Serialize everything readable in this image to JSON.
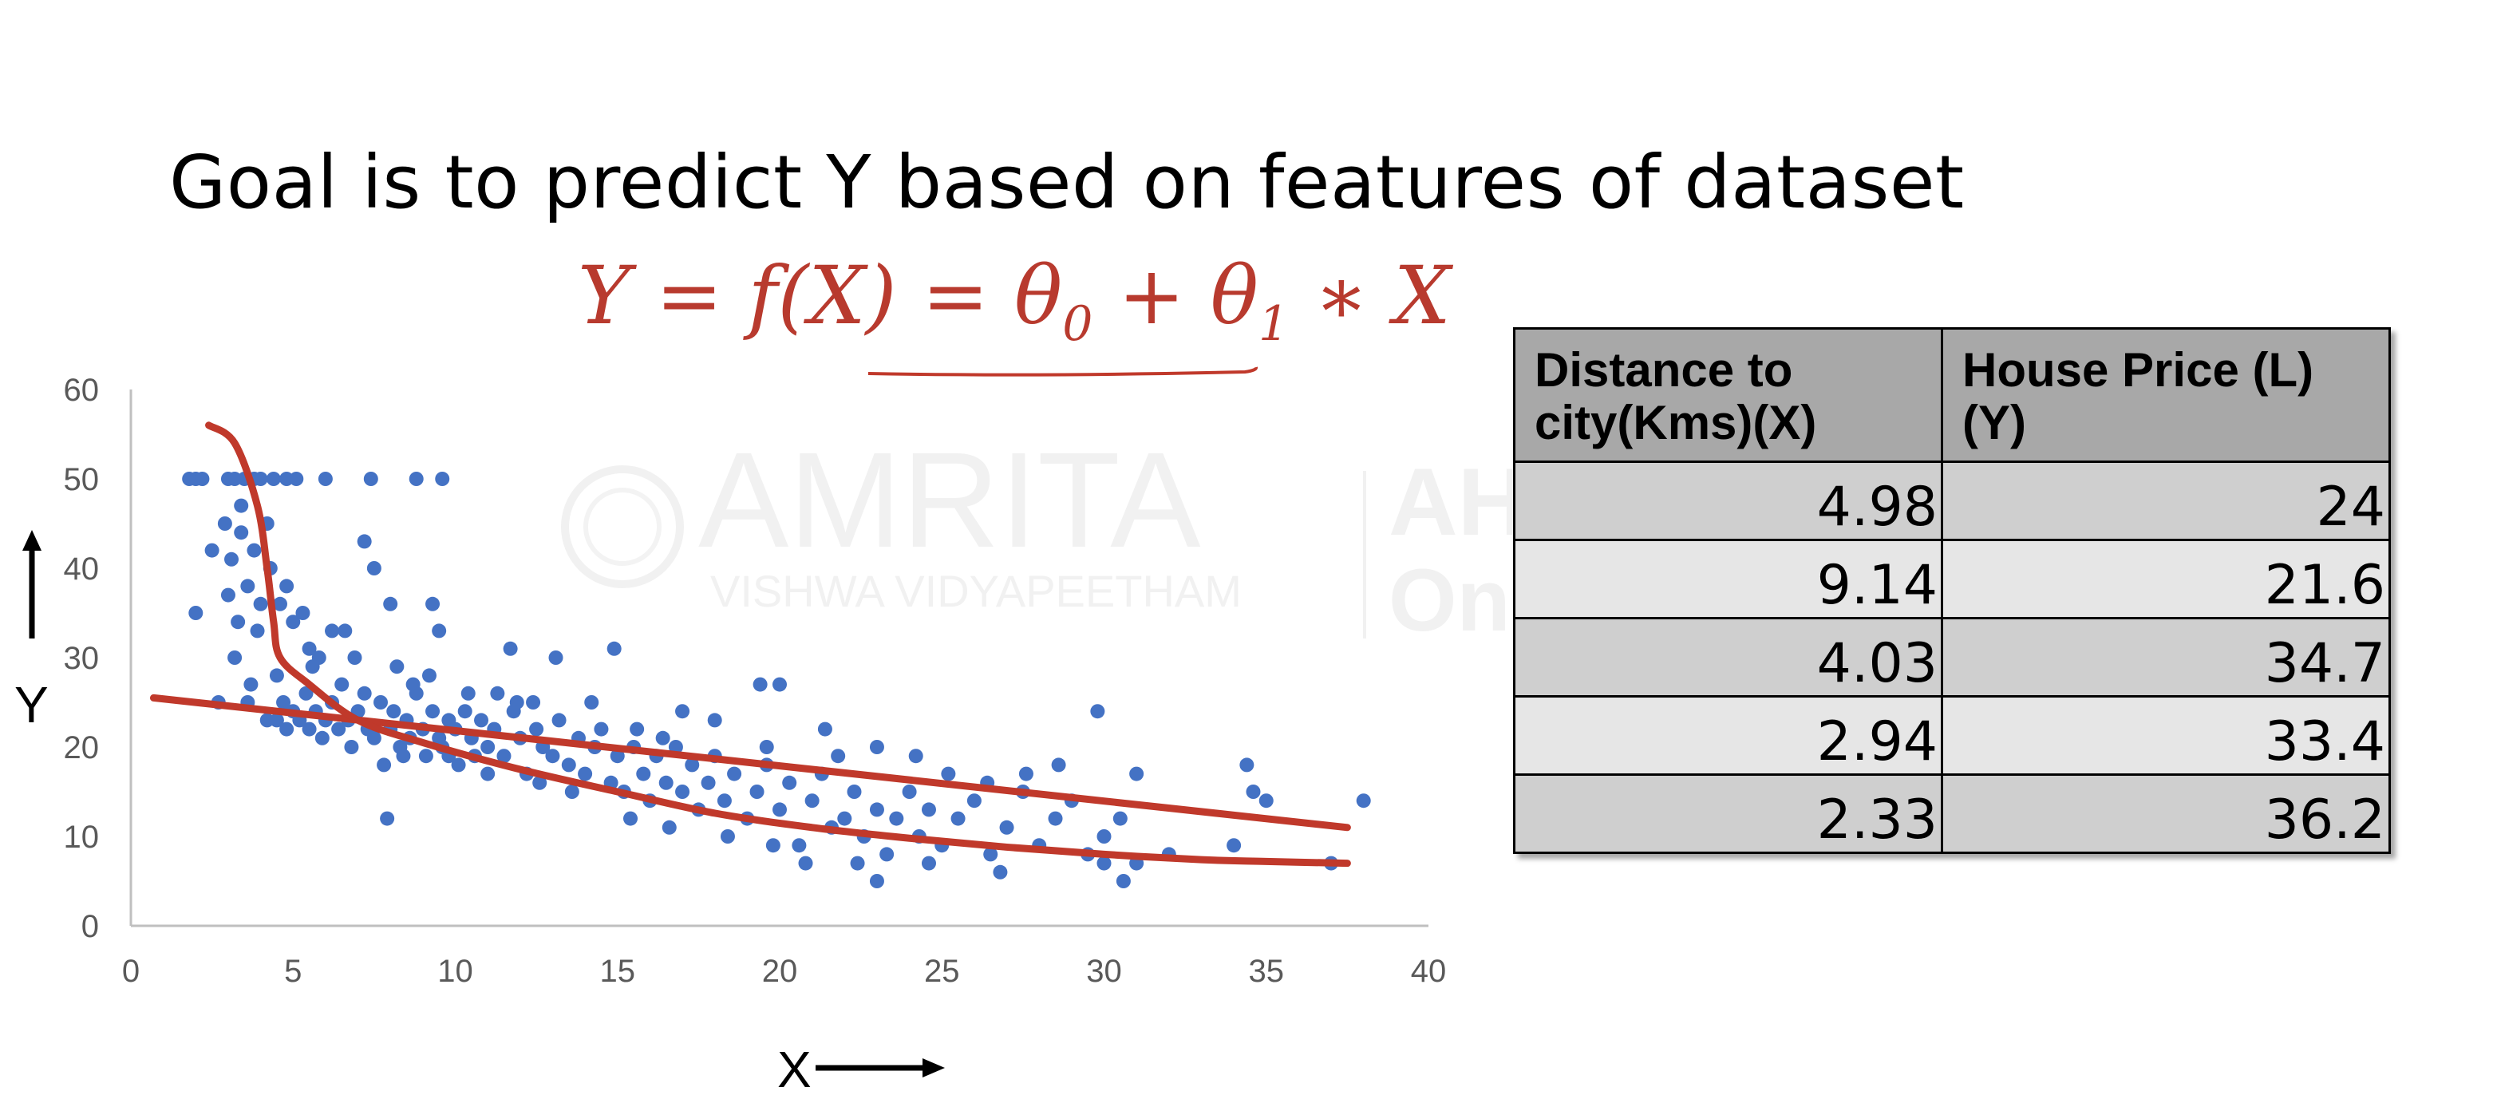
{
  "slide": {
    "title": "Goal is to predict Y based on features of dataset",
    "formula": {
      "lhs": "Y = f(X) = θ",
      "sub0": "0",
      "mid": " + θ",
      "sub1": "1",
      "rhs": " ∗ X"
    },
    "watermark": {
      "brand": "AMRITA",
      "tagline": "VISHWA VIDYAPEETHAM",
      "ahead": "AHEAD",
      "online": "Online"
    },
    "accent_color": "#c0392b"
  },
  "chart_data": {
    "type": "scatter",
    "title": "",
    "xlabel": "X",
    "ylabel": "Y",
    "xlim": [
      0,
      40
    ],
    "ylim": [
      0,
      60
    ],
    "xticks": [
      "0",
      "5",
      "10",
      "15",
      "20",
      "25",
      "30",
      "35",
      "40"
    ],
    "yticks": [
      "0",
      "10",
      "20",
      "30",
      "40",
      "50",
      "60"
    ],
    "grid": false,
    "point_color": "#4472c4",
    "line_color": "#c0392b",
    "points": [
      [
        1.8,
        50
      ],
      [
        2.0,
        50
      ],
      [
        2.2,
        50
      ],
      [
        3.0,
        50
      ],
      [
        3.2,
        50
      ],
      [
        3.5,
        50
      ],
      [
        3.8,
        50
      ],
      [
        4.0,
        50
      ],
      [
        4.4,
        50
      ],
      [
        4.8,
        50
      ],
      [
        5.1,
        50
      ],
      [
        6.0,
        50
      ],
      [
        7.4,
        50
      ],
      [
        8.8,
        50
      ],
      [
        9.6,
        50
      ],
      [
        2.0,
        35
      ],
      [
        2.5,
        42
      ],
      [
        2.9,
        45
      ],
      [
        3.0,
        37
      ],
      [
        3.1,
        41
      ],
      [
        3.3,
        34
      ],
      [
        3.4,
        44
      ],
      [
        3.6,
        38
      ],
      [
        3.8,
        42
      ],
      [
        3.9,
        33
      ],
      [
        4.0,
        36
      ],
      [
        4.3,
        40
      ],
      [
        4.6,
        36
      ],
      [
        4.8,
        38
      ],
      [
        5.0,
        34
      ],
      [
        5.3,
        35
      ],
      [
        5.5,
        31
      ],
      [
        5.8,
        30
      ],
      [
        6.2,
        33
      ],
      [
        6.6,
        33
      ],
      [
        7.2,
        43
      ],
      [
        7.5,
        40
      ],
      [
        8.0,
        36
      ],
      [
        8.2,
        29
      ],
      [
        9.3,
        36
      ],
      [
        9.5,
        33
      ],
      [
        9.2,
        28
      ],
      [
        8.7,
        27
      ],
      [
        3.4,
        47
      ],
      [
        3.2,
        30
      ],
      [
        3.7,
        27
      ],
      [
        4.2,
        45
      ],
      [
        4.5,
        28
      ],
      [
        4.5,
        23
      ],
      [
        4.7,
        25
      ],
      [
        4.8,
        22
      ],
      [
        5.0,
        24
      ],
      [
        5.2,
        23
      ],
      [
        5.4,
        26
      ],
      [
        5.5,
        22
      ],
      [
        5.7,
        24
      ],
      [
        5.9,
        21
      ],
      [
        6.0,
        23
      ],
      [
        6.2,
        25
      ],
      [
        6.4,
        22
      ],
      [
        6.5,
        27
      ],
      [
        6.7,
        23
      ],
      [
        6.8,
        20
      ],
      [
        7.0,
        24
      ],
      [
        7.2,
        26
      ],
      [
        7.3,
        22
      ],
      [
        7.5,
        21
      ],
      [
        7.7,
        25
      ],
      [
        7.8,
        18
      ],
      [
        8.0,
        22
      ],
      [
        8.1,
        24
      ],
      [
        8.3,
        20
      ],
      [
        8.5,
        23
      ],
      [
        8.6,
        21
      ],
      [
        8.8,
        26
      ],
      [
        9.0,
        22
      ],
      [
        9.1,
        19
      ],
      [
        9.3,
        24
      ],
      [
        9.5,
        21
      ],
      [
        9.6,
        20
      ],
      [
        9.8,
        23
      ],
      [
        10.0,
        22
      ],
      [
        10.1,
        18
      ],
      [
        10.3,
        24
      ],
      [
        10.5,
        21
      ],
      [
        10.6,
        19
      ],
      [
        10.8,
        23
      ],
      [
        11.0,
        20
      ],
      [
        11.2,
        22
      ],
      [
        11.3,
        26
      ],
      [
        11.5,
        19
      ],
      [
        11.8,
        24
      ],
      [
        12.0,
        21
      ],
      [
        12.2,
        17
      ],
      [
        12.5,
        22
      ],
      [
        12.7,
        20
      ],
      [
        13.0,
        19
      ],
      [
        13.2,
        23
      ],
      [
        13.5,
        18
      ],
      [
        13.8,
        21
      ],
      [
        14.0,
        17
      ],
      [
        14.3,
        20
      ],
      [
        14.5,
        22
      ],
      [
        14.8,
        16
      ],
      [
        15.0,
        19
      ],
      [
        15.2,
        15
      ],
      [
        15.5,
        20
      ],
      [
        15.8,
        17
      ],
      [
        16.0,
        14
      ],
      [
        16.2,
        19
      ],
      [
        16.5,
        16
      ],
      [
        16.8,
        20
      ],
      [
        17.0,
        15
      ],
      [
        17.3,
        18
      ],
      [
        17.5,
        13
      ],
      [
        17.8,
        16
      ],
      [
        18.0,
        19
      ],
      [
        18.3,
        14
      ],
      [
        18.6,
        17
      ],
      [
        19.0,
        12
      ],
      [
        19.3,
        15
      ],
      [
        19.6,
        18
      ],
      [
        20.0,
        13
      ],
      [
        20.3,
        16
      ],
      [
        20.6,
        9
      ],
      [
        21.0,
        14
      ],
      [
        21.3,
        17
      ],
      [
        21.6,
        11
      ],
      [
        22.0,
        12
      ],
      [
        22.3,
        15
      ],
      [
        22.6,
        10
      ],
      [
        23.0,
        13
      ],
      [
        23.3,
        8
      ],
      [
        23.6,
        12
      ],
      [
        24.0,
        15
      ],
      [
        24.3,
        10
      ],
      [
        24.6,
        13
      ],
      [
        25.0,
        9
      ],
      [
        25.5,
        12
      ],
      [
        26.0,
        14
      ],
      [
        26.5,
        8
      ],
      [
        27.0,
        11
      ],
      [
        27.5,
        15
      ],
      [
        28.0,
        9
      ],
      [
        28.5,
        12
      ],
      [
        29.0,
        14
      ],
      [
        29.5,
        8
      ],
      [
        30.0,
        10
      ],
      [
        30.5,
        12
      ],
      [
        31.0,
        7
      ],
      [
        20.8,
        7
      ],
      [
        23.0,
        5
      ],
      [
        26.8,
        6
      ],
      [
        30.6,
        5
      ],
      [
        30.0,
        7
      ],
      [
        29.8,
        24
      ],
      [
        34.4,
        18
      ],
      [
        34.6,
        15
      ],
      [
        35.0,
        14
      ],
      [
        37.0,
        7
      ],
      [
        38.0,
        14
      ],
      [
        34.0,
        9
      ],
      [
        32.0,
        8
      ],
      [
        24.2,
        19
      ],
      [
        23.0,
        20
      ],
      [
        21.4,
        22
      ],
      [
        20.0,
        27
      ],
      [
        19.4,
        27
      ],
      [
        18.0,
        23
      ],
      [
        17.0,
        24
      ],
      [
        14.9,
        31
      ],
      [
        13.1,
        30
      ],
      [
        11.7,
        31
      ],
      [
        11.9,
        25
      ],
      [
        7.9,
        12
      ],
      [
        2.7,
        25
      ],
      [
        3.6,
        25
      ],
      [
        4.2,
        23
      ],
      [
        6.9,
        30
      ],
      [
        5.6,
        29
      ],
      [
        10.4,
        26
      ],
      [
        12.4,
        25
      ],
      [
        14.2,
        25
      ],
      [
        15.6,
        22
      ],
      [
        16.4,
        21
      ],
      [
        19.6,
        20
      ],
      [
        21.8,
        19
      ],
      [
        25.2,
        17
      ],
      [
        26.4,
        16
      ],
      [
        27.6,
        17
      ],
      [
        28.6,
        18
      ],
      [
        31.0,
        17
      ],
      [
        8.4,
        19
      ],
      [
        9.8,
        19
      ],
      [
        11.0,
        17
      ],
      [
        12.6,
        16
      ],
      [
        13.6,
        15
      ],
      [
        15.4,
        12
      ],
      [
        16.6,
        11
      ],
      [
        18.4,
        10
      ],
      [
        19.8,
        9
      ],
      [
        22.4,
        7
      ],
      [
        24.6,
        7
      ]
    ],
    "fit_lines": [
      {
        "label": "linear",
        "x": [
          0.7,
          37.5
        ],
        "y": [
          25.5,
          11
        ]
      },
      {
        "label": "curve",
        "x": [
          2.4,
          3.2,
          3.9,
          4.2,
          4.4,
          4.6,
          5.5,
          7,
          9,
          12,
          15,
          18,
          21,
          24,
          27,
          30,
          33,
          35,
          37.5
        ],
        "y": [
          56,
          54,
          47,
          40,
          34,
          30,
          27,
          23,
          20.5,
          17.5,
          15,
          12.6,
          11,
          9.8,
          8.8,
          8,
          7.4,
          7.2,
          7
        ]
      }
    ]
  },
  "table": {
    "headers": [
      "Distance to city(Kms)(X)",
      "House Price (L)(Y)"
    ],
    "rows": [
      [
        "4.98",
        "24"
      ],
      [
        "9.14",
        "21.6"
      ],
      [
        "4.03",
        "34.7"
      ],
      [
        "2.94",
        "33.4"
      ],
      [
        "2.33",
        "36.2"
      ]
    ]
  }
}
